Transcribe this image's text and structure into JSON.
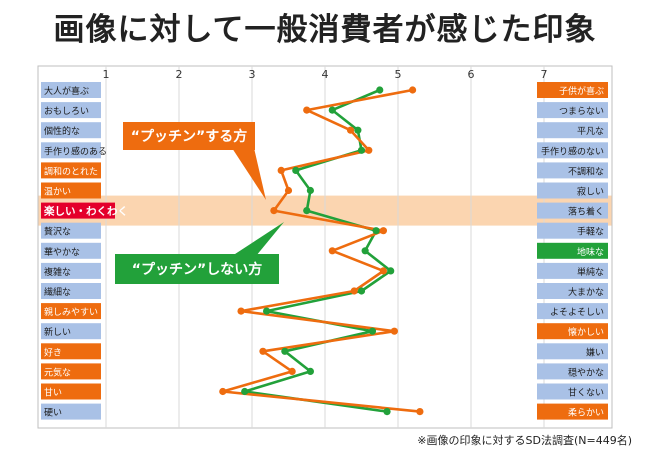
{
  "title": "画像に対して一般消費者が感じた印象",
  "footnote": "※画像の印象に対するSD法調査(N=449名)",
  "colors": {
    "orange": "#ee6c0f",
    "green": "#22a13a",
    "label_blue": "#a9c1e6",
    "label_red": "#e4002b",
    "highlight_band": "#fbd5b0",
    "grid": "#d9d9d9"
  },
  "chart_data": {
    "type": "line",
    "x_ticks": [
      "1",
      "2",
      "3",
      "4",
      "5",
      "6",
      "7"
    ],
    "xlim": [
      1,
      7
    ],
    "grid": true,
    "left_labels": [
      "大人が喜ぶ",
      "おもしろい",
      "個性的な",
      "手作り感のある",
      "調和のとれた",
      "温かい",
      "楽しい・わくわく",
      "贅沢な",
      "華やかな",
      "複雑な",
      "繊細な",
      "親しみやすい",
      "新しい",
      "好き",
      "元気な",
      "甘い",
      "硬い"
    ],
    "right_labels": [
      "子供が喜ぶ",
      "つまらない",
      "平凡な",
      "手作り感のない",
      "不調和な",
      "寂しい",
      "落ち着く",
      "手軽な",
      "地味な",
      "単純な",
      "大まかな",
      "よそよそしい",
      "懐かしい",
      "嫌い",
      "穏やかな",
      "甘くない",
      "柔らかい"
    ],
    "left_label_styles": [
      "blue",
      "blue",
      "blue",
      "blue",
      "orange",
      "orange",
      "red",
      "blue",
      "blue",
      "blue",
      "blue",
      "orange",
      "blue",
      "orange",
      "orange",
      "orange",
      "blue"
    ],
    "right_label_styles": [
      "orange",
      "blue",
      "blue",
      "blue",
      "blue",
      "blue",
      "blue",
      "blue",
      "green",
      "blue",
      "blue",
      "blue",
      "orange",
      "blue",
      "blue",
      "blue",
      "orange"
    ],
    "highlight_row": 6,
    "series": [
      {
        "name": "“プッチン”する方",
        "color": "orange",
        "values": [
          5.2,
          3.75,
          4.35,
          4.6,
          3.4,
          3.5,
          3.3,
          4.8,
          4.1,
          4.8,
          4.4,
          2.85,
          4.95,
          3.15,
          3.55,
          2.6,
          5.3
        ]
      },
      {
        "name": "“プッチン”しない方",
        "color": "green",
        "values": [
          4.75,
          4.1,
          4.45,
          4.5,
          3.6,
          3.8,
          3.75,
          4.7,
          4.55,
          4.9,
          4.5,
          3.2,
          4.65,
          3.45,
          3.8,
          2.9,
          4.85
        ]
      }
    ]
  }
}
